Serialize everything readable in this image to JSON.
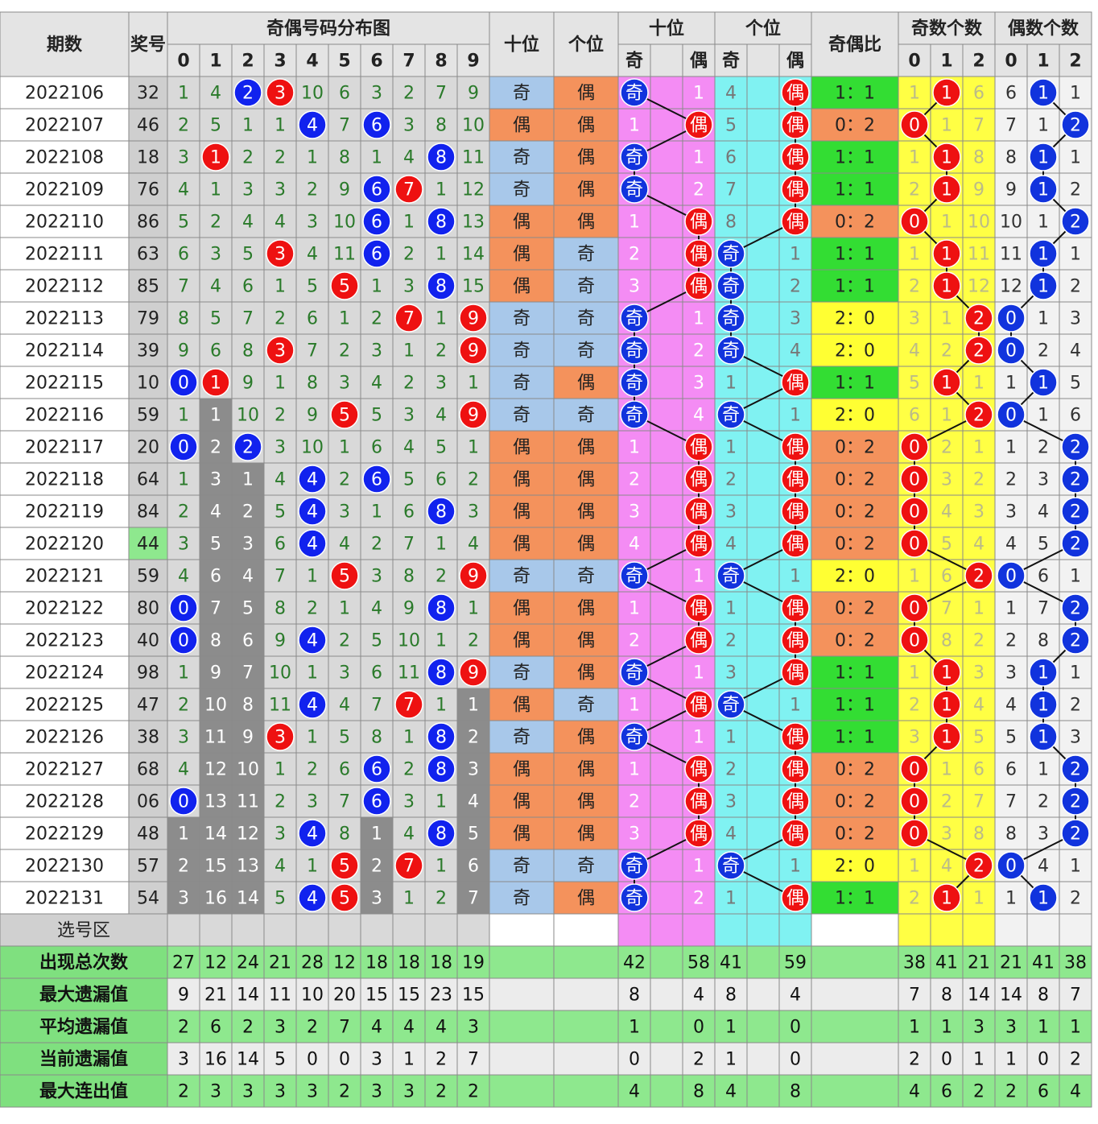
{
  "header": {
    "period": "期数",
    "number": "奖号",
    "distribution": "奇偶号码分布图",
    "digits": [
      0,
      1,
      2,
      3,
      4,
      5,
      6,
      7,
      8,
      9
    ],
    "tens": "十位",
    "units": "个位",
    "parity_labels": [
      "奇",
      "偶"
    ],
    "ratio": "奇偶比",
    "odd_count": "奇数个数",
    "even_count": "偶数个数",
    "count_digits": [
      0,
      1,
      2
    ]
  },
  "rows": [
    {
      "period": "2022106",
      "number": "32",
      "dist": [
        1,
        4,
        2,
        3,
        10,
        6,
        3,
        2,
        7,
        9
      ],
      "tens_parity": "奇",
      "units_parity": "偶",
      "tens": [
        "奇",
        1
      ],
      "units": [
        4,
        "偶"
      ],
      "ratio": "1：1",
      "odd_count": [
        1,
        1,
        6
      ],
      "even_count": [
        6,
        1,
        1
      ]
    },
    {
      "period": "2022107",
      "number": "46",
      "dist": [
        2,
        5,
        1,
        1,
        4,
        7,
        6,
        3,
        8,
        10
      ],
      "tens_parity": "偶",
      "units_parity": "偶",
      "tens": [
        1,
        "偶"
      ],
      "units": [
        5,
        "偶"
      ],
      "ratio": "0：2",
      "odd_count": [
        0,
        1,
        7
      ],
      "even_count": [
        7,
        1,
        2
      ]
    },
    {
      "period": "2022108",
      "number": "18",
      "dist": [
        3,
        1,
        2,
        2,
        1,
        8,
        1,
        4,
        8,
        11
      ],
      "tens_parity": "奇",
      "units_parity": "偶",
      "tens": [
        "奇",
        1
      ],
      "units": [
        6,
        "偶"
      ],
      "ratio": "1：1",
      "odd_count": [
        1,
        1,
        8
      ],
      "even_count": [
        8,
        1,
        1
      ]
    },
    {
      "period": "2022109",
      "number": "76",
      "dist": [
        4,
        1,
        3,
        3,
        2,
        9,
        6,
        7,
        1,
        12
      ],
      "tens_parity": "奇",
      "units_parity": "偶",
      "tens": [
        "奇",
        2
      ],
      "units": [
        7,
        "偶"
      ],
      "ratio": "1：1",
      "odd_count": [
        2,
        1,
        9
      ],
      "even_count": [
        9,
        1,
        2
      ]
    },
    {
      "period": "2022110",
      "number": "86",
      "dist": [
        5,
        2,
        4,
        4,
        3,
        10,
        6,
        1,
        8,
        13
      ],
      "tens_parity": "偶",
      "units_parity": "偶",
      "tens": [
        1,
        "偶"
      ],
      "units": [
        8,
        "偶"
      ],
      "ratio": "0：2",
      "odd_count": [
        0,
        1,
        10
      ],
      "even_count": [
        10,
        1,
        2
      ]
    },
    {
      "period": "2022111",
      "number": "63",
      "dist": [
        6,
        3,
        5,
        3,
        4,
        11,
        6,
        2,
        1,
        14
      ],
      "tens_parity": "偶",
      "units_parity": "奇",
      "tens": [
        2,
        "偶"
      ],
      "units": [
        "奇",
        1
      ],
      "ratio": "1：1",
      "odd_count": [
        1,
        1,
        11
      ],
      "even_count": [
        11,
        1,
        1
      ]
    },
    {
      "period": "2022112",
      "number": "85",
      "dist": [
        7,
        4,
        6,
        1,
        5,
        5,
        1,
        3,
        8,
        15
      ],
      "tens_parity": "偶",
      "units_parity": "奇",
      "tens": [
        3,
        "偶"
      ],
      "units": [
        "奇",
        2
      ],
      "ratio": "1：1",
      "odd_count": [
        2,
        1,
        12
      ],
      "even_count": [
        12,
        1,
        2
      ]
    },
    {
      "period": "2022113",
      "number": "79",
      "dist": [
        8,
        5,
        7,
        2,
        6,
        1,
        2,
        7,
        1,
        9
      ],
      "tens_parity": "奇",
      "units_parity": "奇",
      "tens": [
        "奇",
        1
      ],
      "units": [
        "奇",
        3
      ],
      "ratio": "2：0",
      "odd_count": [
        3,
        1,
        2
      ],
      "even_count": [
        0,
        1,
        3
      ]
    },
    {
      "period": "2022114",
      "number": "39",
      "dist": [
        9,
        6,
        8,
        3,
        7,
        2,
        3,
        1,
        2,
        9
      ],
      "tens_parity": "奇",
      "units_parity": "奇",
      "tens": [
        "奇",
        2
      ],
      "units": [
        "奇",
        4
      ],
      "ratio": "2：0",
      "odd_count": [
        4,
        2,
        2
      ],
      "even_count": [
        0,
        2,
        4
      ]
    },
    {
      "period": "2022115",
      "number": "10",
      "dist": [
        0,
        1,
        9,
        1,
        8,
        3,
        4,
        2,
        3,
        1
      ],
      "tens_parity": "奇",
      "units_parity": "偶",
      "tens": [
        "奇",
        3
      ],
      "units": [
        1,
        "偶"
      ],
      "ratio": "1：1",
      "odd_count": [
        5,
        1,
        1
      ],
      "even_count": [
        1,
        1,
        5
      ]
    },
    {
      "period": "2022116",
      "number": "59",
      "dist": [
        1,
        1,
        10,
        2,
        9,
        5,
        5,
        3,
        4,
        9
      ],
      "tens_parity": "奇",
      "units_parity": "奇",
      "tens": [
        "奇",
        4
      ],
      "units": [
        "奇",
        1
      ],
      "ratio": "2：0",
      "odd_count": [
        6,
        1,
        2
      ],
      "even_count": [
        0,
        1,
        6
      ]
    },
    {
      "period": "2022117",
      "number": "20",
      "dist": [
        0,
        2,
        2,
        3,
        10,
        1,
        6,
        4,
        5,
        1
      ],
      "tens_parity": "偶",
      "units_parity": "偶",
      "tens": [
        1,
        "偶"
      ],
      "units": [
        1,
        "偶"
      ],
      "ratio": "0：2",
      "odd_count": [
        0,
        2,
        1
      ],
      "even_count": [
        1,
        2,
        2
      ]
    },
    {
      "period": "2022118",
      "number": "64",
      "dist": [
        1,
        3,
        1,
        4,
        4,
        2,
        6,
        5,
        6,
        2
      ],
      "tens_parity": "偶",
      "units_parity": "偶",
      "tens": [
        2,
        "偶"
      ],
      "units": [
        2,
        "偶"
      ],
      "ratio": "0：2",
      "odd_count": [
        0,
        3,
        2
      ],
      "even_count": [
        2,
        3,
        2
      ]
    },
    {
      "period": "2022119",
      "number": "84",
      "dist": [
        2,
        4,
        2,
        5,
        4,
        3,
        1,
        6,
        8,
        3
      ],
      "tens_parity": "偶",
      "units_parity": "偶",
      "tens": [
        3,
        "偶"
      ],
      "units": [
        3,
        "偶"
      ],
      "ratio": "0：2",
      "odd_count": [
        0,
        4,
        3
      ],
      "even_count": [
        3,
        4,
        2
      ]
    },
    {
      "period": "2022120",
      "number": "44",
      "dist": [
        3,
        5,
        3,
        6,
        4,
        4,
        2,
        7,
        1,
        4
      ],
      "tens_parity": "偶",
      "units_parity": "偶",
      "tens": [
        4,
        "偶"
      ],
      "units": [
        4,
        "偶"
      ],
      "ratio": "0：2",
      "odd_count": [
        0,
        5,
        4
      ],
      "even_count": [
        4,
        5,
        2
      ]
    },
    {
      "period": "2022121",
      "number": "59",
      "dist": [
        4,
        6,
        4,
        7,
        1,
        5,
        3,
        8,
        2,
        9
      ],
      "tens_parity": "奇",
      "units_parity": "奇",
      "tens": [
        "奇",
        1
      ],
      "units": [
        "奇",
        1
      ],
      "ratio": "2：0",
      "odd_count": [
        1,
        6,
        2
      ],
      "even_count": [
        0,
        6,
        1
      ]
    },
    {
      "period": "2022122",
      "number": "80",
      "dist": [
        0,
        7,
        5,
        8,
        2,
        1,
        4,
        9,
        8,
        1
      ],
      "tens_parity": "偶",
      "units_parity": "偶",
      "tens": [
        1,
        "偶"
      ],
      "units": [
        1,
        "偶"
      ],
      "ratio": "0：2",
      "odd_count": [
        0,
        7,
        1
      ],
      "even_count": [
        1,
        7,
        2
      ]
    },
    {
      "period": "2022123",
      "number": "40",
      "dist": [
        0,
        8,
        6,
        9,
        4,
        2,
        5,
        10,
        1,
        2
      ],
      "tens_parity": "偶",
      "units_parity": "偶",
      "tens": [
        2,
        "偶"
      ],
      "units": [
        2,
        "偶"
      ],
      "ratio": "0：2",
      "odd_count": [
        0,
        8,
        2
      ],
      "even_count": [
        2,
        8,
        2
      ]
    },
    {
      "period": "2022124",
      "number": "98",
      "dist": [
        1,
        9,
        7,
        10,
        1,
        3,
        6,
        11,
        8,
        9
      ],
      "tens_parity": "奇",
      "units_parity": "偶",
      "tens": [
        "奇",
        1
      ],
      "units": [
        3,
        "偶"
      ],
      "ratio": "1：1",
      "odd_count": [
        1,
        1,
        3
      ],
      "even_count": [
        3,
        1,
        1
      ]
    },
    {
      "period": "2022125",
      "number": "47",
      "dist": [
        2,
        10,
        8,
        11,
        4,
        4,
        7,
        7,
        1,
        1
      ],
      "tens_parity": "偶",
      "units_parity": "奇",
      "tens": [
        1,
        "偶"
      ],
      "units": [
        "奇",
        1
      ],
      "ratio": "1：1",
      "odd_count": [
        2,
        1,
        4
      ],
      "even_count": [
        4,
        1,
        2
      ]
    },
    {
      "period": "2022126",
      "number": "38",
      "dist": [
        3,
        11,
        9,
        3,
        1,
        5,
        8,
        1,
        8,
        2
      ],
      "tens_parity": "奇",
      "units_parity": "偶",
      "tens": [
        "奇",
        1
      ],
      "units": [
        1,
        "偶"
      ],
      "ratio": "1：1",
      "odd_count": [
        3,
        1,
        5
      ],
      "even_count": [
        5,
        1,
        3
      ]
    },
    {
      "period": "2022127",
      "number": "68",
      "dist": [
        4,
        12,
        10,
        1,
        2,
        6,
        6,
        2,
        8,
        3
      ],
      "tens_parity": "偶",
      "units_parity": "偶",
      "tens": [
        1,
        "偶"
      ],
      "units": [
        2,
        "偶"
      ],
      "ratio": "0：2",
      "odd_count": [
        0,
        1,
        6
      ],
      "even_count": [
        6,
        1,
        2
      ]
    },
    {
      "period": "2022128",
      "number": "06",
      "dist": [
        0,
        13,
        11,
        2,
        3,
        7,
        6,
        3,
        1,
        4
      ],
      "tens_parity": "偶",
      "units_parity": "偶",
      "tens": [
        2,
        "偶"
      ],
      "units": [
        3,
        "偶"
      ],
      "ratio": "0：2",
      "odd_count": [
        0,
        2,
        7
      ],
      "even_count": [
        7,
        2,
        2
      ]
    },
    {
      "period": "2022129",
      "number": "48",
      "dist": [
        1,
        14,
        12,
        3,
        4,
        8,
        1,
        4,
        8,
        5
      ],
      "tens_parity": "偶",
      "units_parity": "偶",
      "tens": [
        3,
        "偶"
      ],
      "units": [
        4,
        "偶"
      ],
      "ratio": "0：2",
      "odd_count": [
        0,
        3,
        8
      ],
      "even_count": [
        8,
        3,
        2
      ]
    },
    {
      "period": "2022130",
      "number": "57",
      "dist": [
        2,
        15,
        13,
        4,
        1,
        5,
        2,
        7,
        1,
        6
      ],
      "tens_parity": "奇",
      "units_parity": "奇",
      "tens": [
        "奇",
        1
      ],
      "units": [
        "奇",
        1
      ],
      "ratio": "2：0",
      "odd_count": [
        1,
        4,
        2
      ],
      "even_count": [
        0,
        4,
        1
      ]
    },
    {
      "period": "2022131",
      "number": "54",
      "dist": [
        3,
        16,
        14,
        5,
        4,
        5,
        3,
        1,
        2,
        7
      ],
      "tens_parity": "奇",
      "units_parity": "偶",
      "tens": [
        "奇",
        2
      ],
      "units": [
        1,
        "偶"
      ],
      "ratio": "1：1",
      "odd_count": [
        2,
        1,
        1
      ],
      "even_count": [
        1,
        1,
        2
      ]
    }
  ],
  "select_label": "选号区",
  "stats": [
    {
      "label": "出现总次数",
      "dist": [
        27,
        12,
        24,
        21,
        28,
        12,
        18,
        18,
        18,
        19
      ],
      "tens": [
        42,
        58
      ],
      "units": [
        41,
        59
      ],
      "odd_count": [
        38,
        41,
        21
      ],
      "even_count": [
        21,
        41,
        38
      ]
    },
    {
      "label": "最大遗漏值",
      "dist": [
        9,
        21,
        14,
        11,
        10,
        20,
        15,
        15,
        23,
        15
      ],
      "tens": [
        8,
        4
      ],
      "units": [
        8,
        4
      ],
      "odd_count": [
        7,
        8,
        14
      ],
      "even_count": [
        14,
        8,
        7
      ]
    },
    {
      "label": "平均遗漏值",
      "dist": [
        2,
        6,
        2,
        3,
        2,
        7,
        4,
        4,
        4,
        3
      ],
      "tens": [
        1,
        0
      ],
      "units": [
        1,
        0
      ],
      "odd_count": [
        1,
        1,
        3
      ],
      "even_count": [
        3,
        1,
        1
      ]
    },
    {
      "label": "当前遗漏值",
      "dist": [
        3,
        16,
        14,
        5,
        0,
        0,
        3,
        1,
        2,
        7
      ],
      "tens": [
        0,
        2
      ],
      "units": [
        1,
        0
      ],
      "odd_count": [
        2,
        0,
        1
      ],
      "even_count": [
        1,
        0,
        2
      ]
    },
    {
      "label": "最大连出值",
      "dist": [
        2,
        3,
        3,
        3,
        3,
        2,
        3,
        3,
        2,
        2
      ],
      "tens": [
        4,
        8
      ],
      "units": [
        4,
        8
      ],
      "odd_count": [
        4,
        6,
        2
      ],
      "even_count": [
        2,
        6,
        4
      ]
    }
  ],
  "shaded_columns": [
    true,
    true,
    true,
    false,
    false,
    false,
    true,
    false,
    false,
    true
  ],
  "parity_colors": {
    "奇": "#a8c8ea",
    "偶": "#f4925c"
  },
  "ratio_colors": {
    "1：1": "#33dd33",
    "0：2": "#f4925c",
    "2：0": "#ffff33"
  }
}
